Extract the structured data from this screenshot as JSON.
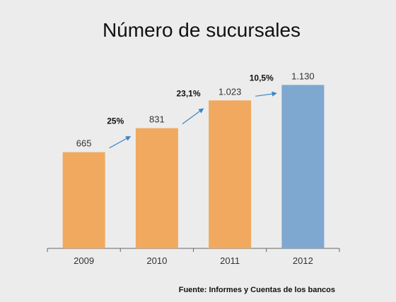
{
  "chart_data": {
    "type": "bar",
    "title": "Número de sucursales",
    "categories": [
      "2009",
      "2010",
      "2011",
      "2012"
    ],
    "values": [
      665,
      831,
      1023,
      1130
    ],
    "value_labels": [
      "665",
      "831",
      "1.023",
      "1.130"
    ],
    "colors": [
      "#f0a95f",
      "#f0a95f",
      "#f0a95f",
      "#7ea8cf"
    ],
    "growth": [
      {
        "label": "25%",
        "from": "2009",
        "to": "2010"
      },
      {
        "label": "23,1%",
        "from": "2010",
        "to": "2011"
      },
      {
        "label": "10,5%",
        "from": "2011",
        "to": "2012"
      }
    ],
    "arrow_color": "#3a86c8",
    "ylim": [
      0,
      1200
    ],
    "grid": false,
    "xlabel": "",
    "ylabel": ""
  },
  "source": "Fuente: Informes y Cuentas de los bancos"
}
